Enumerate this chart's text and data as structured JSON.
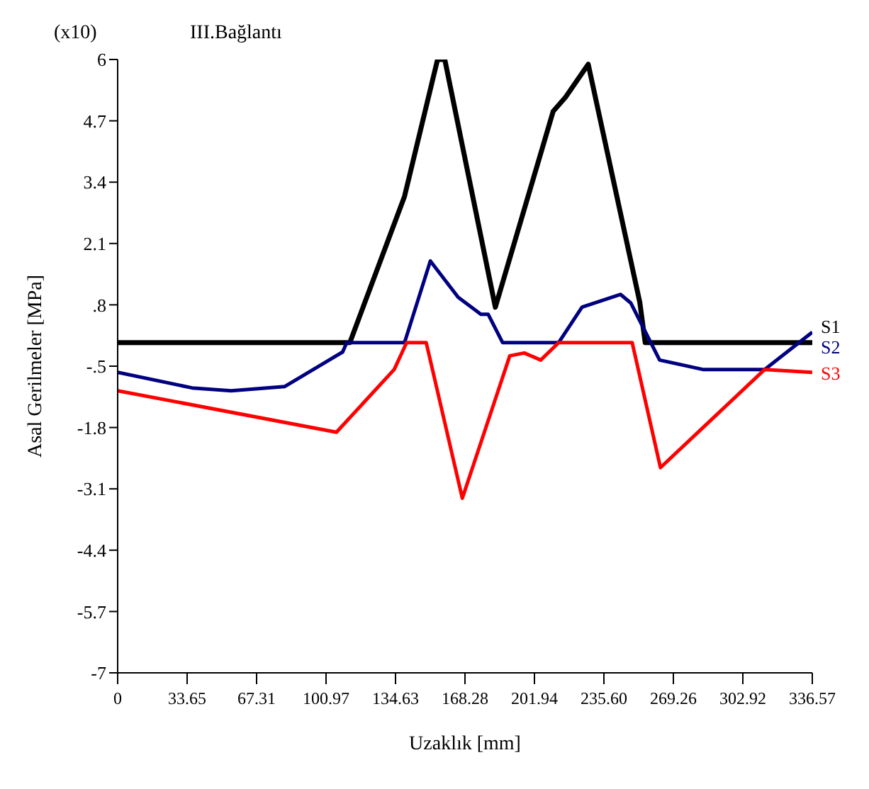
{
  "chart_data": {
    "type": "line",
    "title": "III.Bağlantı",
    "xlabel": "Uzaklık [mm]",
    "ylabel": "Asal Gerilmeler [MPa]",
    "annotations": [
      "(x10)"
    ],
    "xlim": [
      0,
      336.57
    ],
    "xticks": [
      0,
      33.65,
      67.31,
      100.97,
      134.63,
      168.28,
      201.94,
      {
        "value": 235.6,
        "label": "235.60"
      },
      269.26,
      302.92,
      336.57
    ],
    "ylim": [
      -7,
      6
    ],
    "yticks": [
      6,
      4.7,
      3.4,
      2.1,
      {
        "value": 0.8,
        "label": ".8"
      },
      {
        "value": -0.5,
        "label": "-.5"
      },
      -1.8,
      -3.1,
      -4.4,
      -5.7,
      -7
    ],
    "grid": false,
    "legend": false,
    "marker": "none",
    "line_style": "solid",
    "series": [
      {
        "name": "S1",
        "color": "#000000",
        "x": [
          0,
          112.5,
          139,
          155,
          158.5,
          183,
          211,
          217,
          228,
          253,
          255.6,
          336.57
        ],
        "values": [
          0,
          0,
          3.1,
          6,
          6,
          0.75,
          4.9,
          5.2,
          5.9,
          0.85,
          0,
          0
        ]
      },
      {
        "name": "S2",
        "color": "#000080",
        "x": [
          0,
          36,
          55,
          81,
          109,
          111,
          139,
          151.5,
          165,
          176,
          179.5,
          186.5,
          213.7,
          225,
          243.7,
          248.6,
          262.6,
          283.5,
          313.5,
          336.57
        ],
        "values": [
          -0.63,
          -0.96,
          -1.02,
          -0.93,
          -0.2,
          0,
          0,
          1.73,
          0.96,
          0.6,
          0.6,
          0,
          0,
          0.75,
          1.02,
          0.84,
          -0.37,
          -0.57,
          -0.57,
          0.22
        ]
      },
      {
        "name": "S3",
        "color": "#ff0000",
        "x": [
          0,
          106,
          134,
          140,
          149.5,
          167,
          190,
          197,
          205,
          213.7,
          249.3,
          263,
          313.5,
          336.57
        ],
        "values": [
          -1.02,
          -1.9,
          -0.57,
          0,
          0,
          -3.3,
          -0.28,
          -0.22,
          -0.37,
          0,
          0,
          -2.65,
          -0.57,
          -0.63
        ]
      }
    ]
  }
}
